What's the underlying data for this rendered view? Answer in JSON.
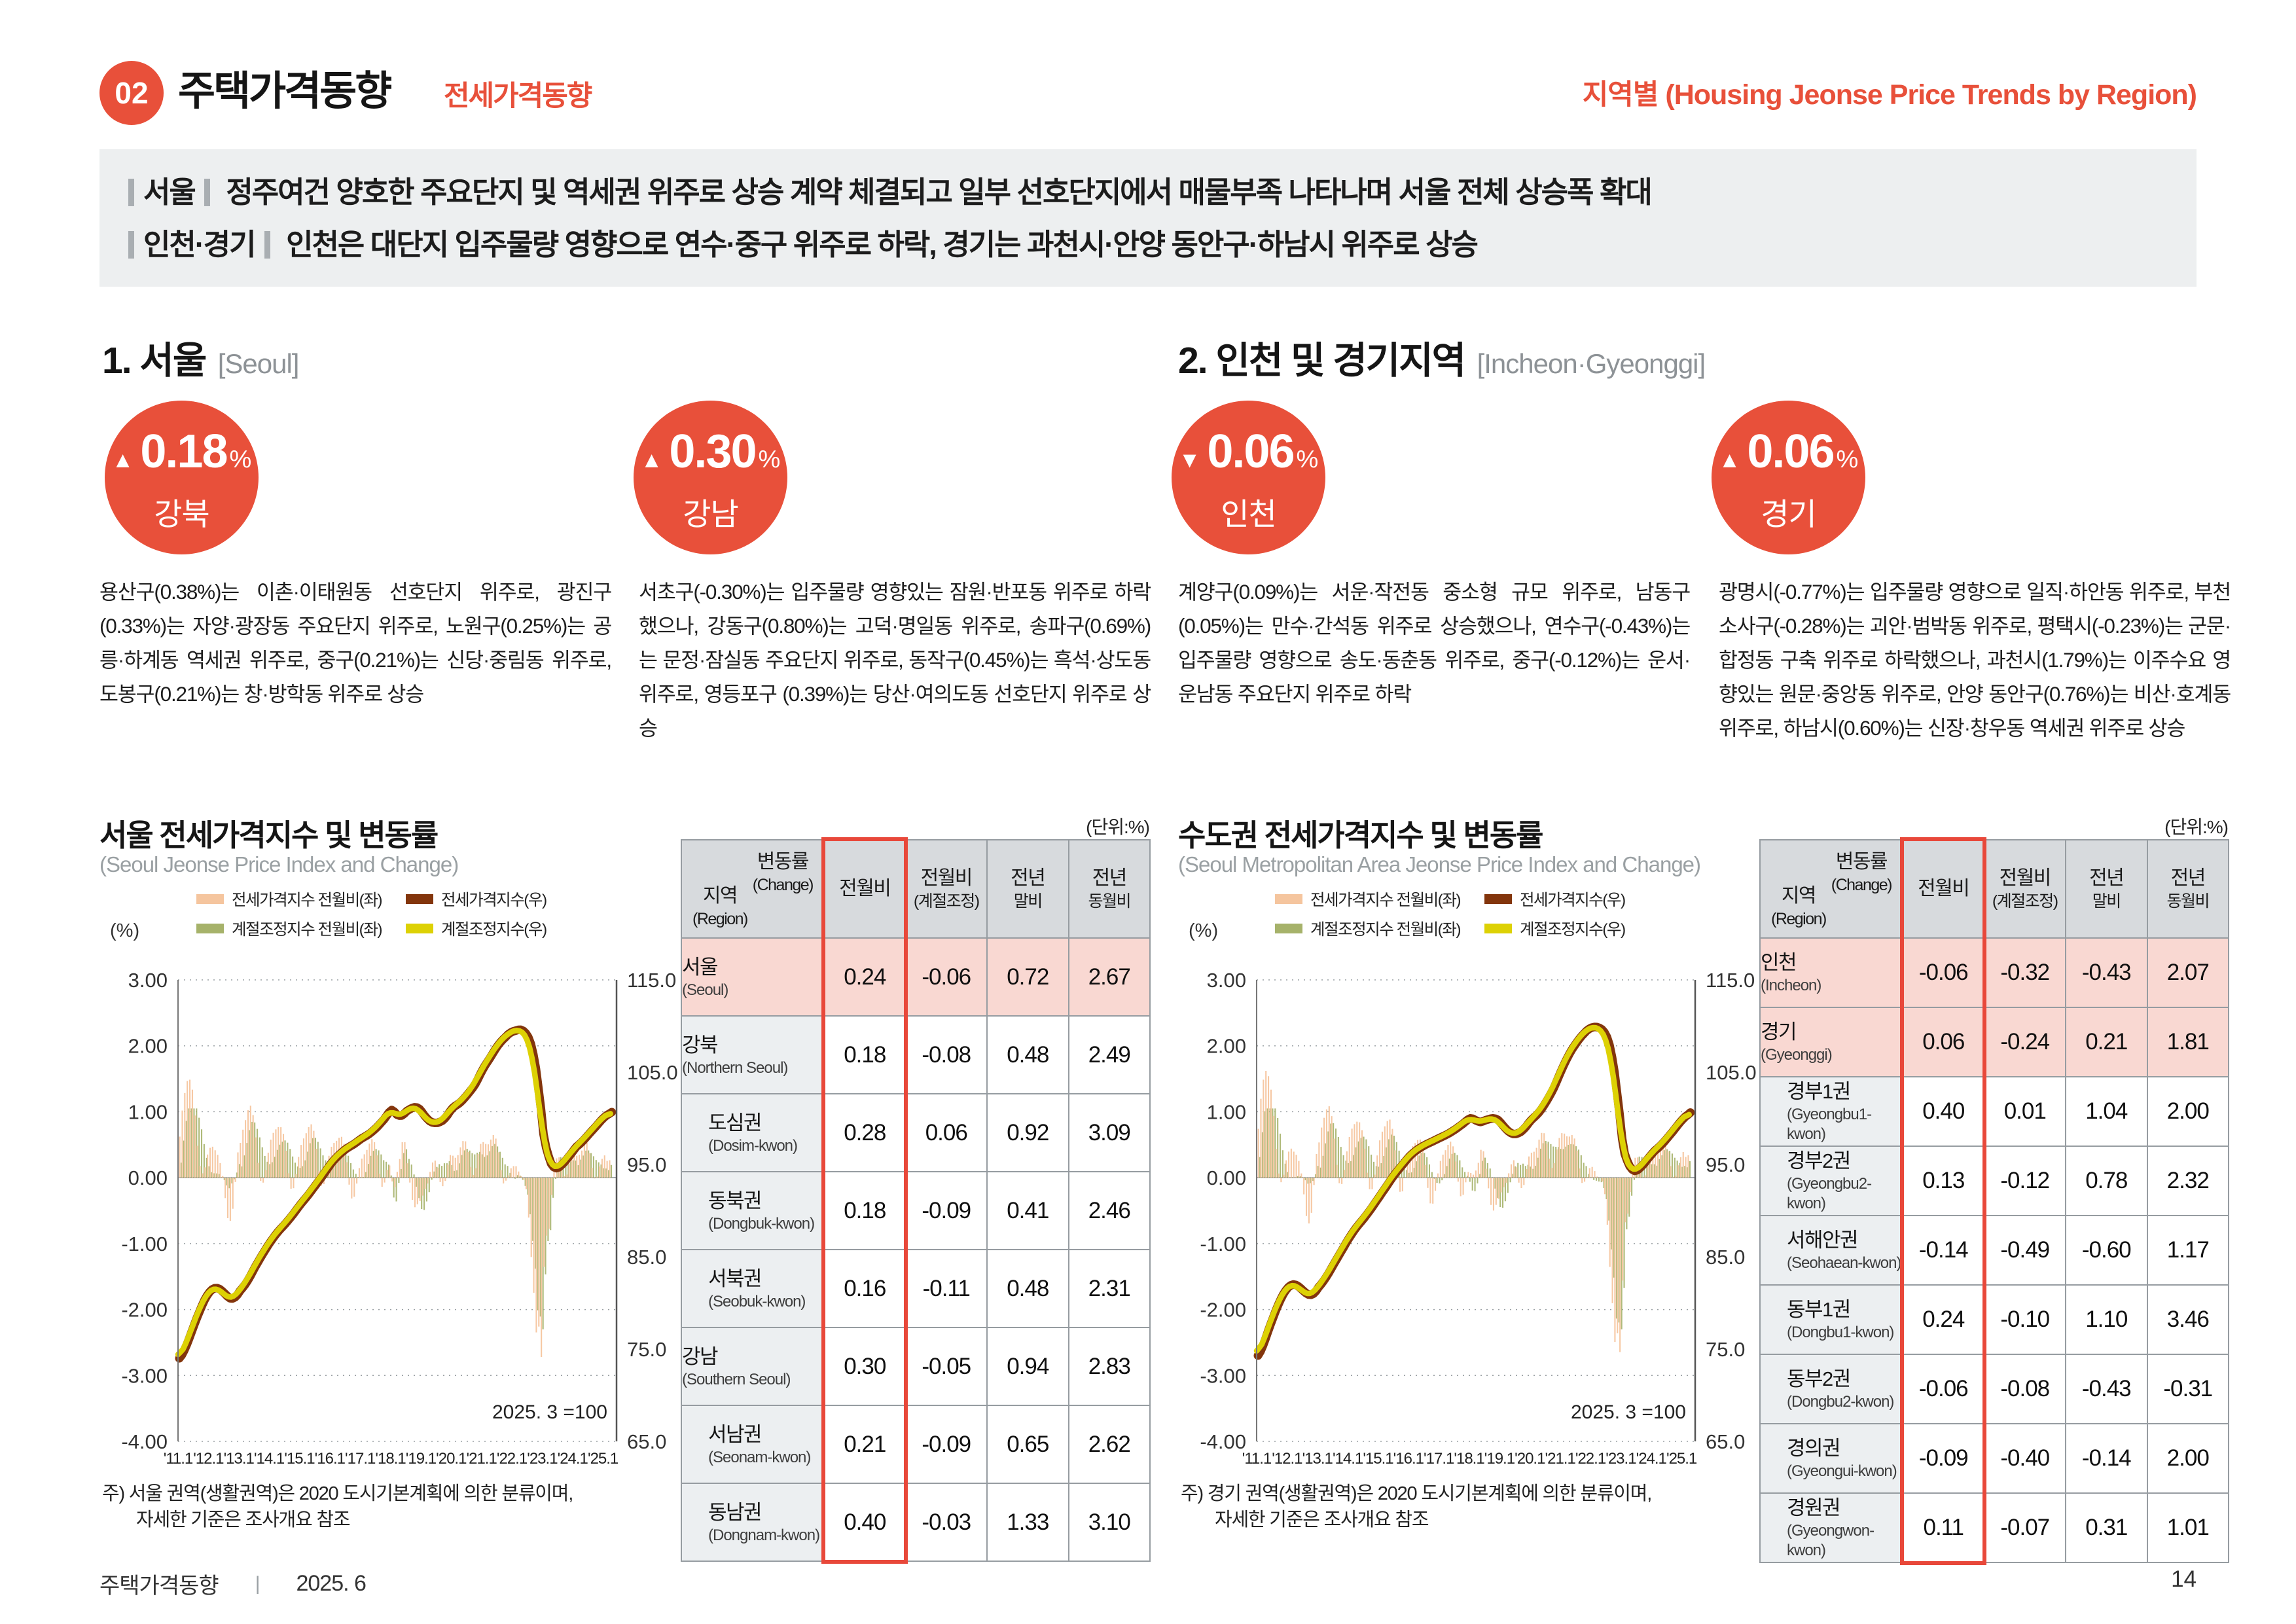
{
  "page": {
    "badge_number": "02",
    "title": "주택가격동향",
    "title_sub": "전세가격동향",
    "header_right": "지역별 (Housing Jeonse Price Trends by Region)",
    "accent_color": "#e8503a",
    "footer": {
      "doc_title": "주택가격동향",
      "divider": "|",
      "date": "2025. 6",
      "page_number": "14"
    }
  },
  "summary": {
    "items": [
      {
        "label": "서울",
        "text": "정주여건 양호한 주요단지 및 역세권 위주로 상승 계약 체결되고 일부 선호단지에서 매물부족 나타나며 서울 전체 상승폭 확대"
      },
      {
        "label": "인천·경기",
        "text": "인천은 대단지 입주물량 영향으로 연수·중구 위주로 하락, 경기는 과천시·안양 동안구·하남시 위주로 상승"
      }
    ]
  },
  "sections": [
    {
      "no_title": "1. 서울",
      "en": "[Seoul]",
      "badges": [
        {
          "arrow": "▲",
          "value": "0.18",
          "unit": "%",
          "region": "강북"
        },
        {
          "arrow": "▲",
          "value": "0.30",
          "unit": "%",
          "region": "강남"
        }
      ],
      "paragraphs": [
        "용산구(0.38%)는 이촌·이태원동 선호단지 위주로, 광진구(0.33%)는 자양·광장동 주요단지 위주로, 노원구(0.25%)는 공릉·하계동 역세권 위주로, 중구(0.21%)는 신당·중림동 위주로, 도봉구(0.21%)는 창·방학동 위주로 상승",
        "서초구(-0.30%)는 입주물량 영향있는 잠원·반포동 위주로 하락했으나, 강동구(0.80%)는 고덕·명일동 위주로, 송파구(0.69%)는 문정·잠실동 주요단지 위주로, 동작구(0.45%)는 흑석·상도동 위주로, 영등포구 (0.39%)는 당산·여의도동 선호단지 위주로 상승"
      ]
    },
    {
      "no_title": "2. 인천 및 경기지역",
      "en": "[Incheon·Gyeonggi]",
      "badges": [
        {
          "arrow": "▼",
          "value": "0.06",
          "unit": "%",
          "region": "인천"
        },
        {
          "arrow": "▲",
          "value": "0.06",
          "unit": "%",
          "region": "경기"
        }
      ],
      "paragraphs": [
        "계양구(0.09%)는 서운·작전동 중소형 규모 위주로, 남동구(0.05%)는 만수·간석동 위주로 상승했으나, 연수구(-0.43%)는 입주물량 영향으로 송도·동춘동 위주로, 중구(-0.12%)는 운서·운남동 주요단지 위주로 하락",
        "광명시(-0.77%)는 입주물량 영향으로 일직·하안동 위주로, 부천 소사구(-0.28%)는 괴안·범박동 위주로, 평택시(-0.23%)는 군문·합정동 구축 위주로 하락했으나, 과천시(1.79%)는 이주수요 영향있는 원문·중앙동 위주로, 안양 동안구(0.76%)는 비산·호계동 위주로, 하남시(0.60%)는 신장·창우동 역세권 위주로 상승"
      ]
    }
  ],
  "legend": {
    "pct_label": "(%)",
    "items": [
      {
        "color": "#f5c59e",
        "label": "전세가격지수 전월비(좌)"
      },
      {
        "color": "#83350c",
        "label": "전세가격지수(우)"
      },
      {
        "color": "#a6b26a",
        "label": "계절조정지수 전월비(좌)"
      },
      {
        "color": "#ddd104",
        "label": "계절조정지수(우)"
      }
    ]
  },
  "figures": [
    {
      "title": "서울 전세가격지수 및 변동률",
      "subtitle": "(Seoul Jeonse Price Index and Change)",
      "unit_label": "(단위:%)",
      "note1": "주) 서울 권역(생활권역)은 2020 도시기본계획에 의한 분류이며,",
      "note2": "자세한 기준은 조사개요 참조",
      "table": {
        "corner": {
          "top": "변동률",
          "top_en": "(Change)",
          "bottom": "지역",
          "bottom_en": "(Region)"
        },
        "columns": [
          {
            "l1": "전월비",
            "l2": ""
          },
          {
            "l1": "전월비",
            "l2": "(계절조정)"
          },
          {
            "l1": "전년",
            "l2": "말비"
          },
          {
            "l1": "전년",
            "l2": "동월비"
          }
        ],
        "rows": [
          {
            "name": "서울",
            "en": "(Seoul)",
            "highlight": true,
            "indent": false,
            "values": [
              "0.24",
              "-0.06",
              "0.72",
              "2.67"
            ]
          },
          {
            "name": "강북",
            "en": "(Northern Seoul)",
            "highlight": false,
            "indent": false,
            "values": [
              "0.18",
              "-0.08",
              "0.48",
              "2.49"
            ]
          },
          {
            "name": "도심권",
            "en": "(Dosim-kwon)",
            "highlight": false,
            "indent": true,
            "values": [
              "0.28",
              "0.06",
              "0.92",
              "3.09"
            ]
          },
          {
            "name": "동북권",
            "en": "(Dongbuk-kwon)",
            "highlight": false,
            "indent": true,
            "values": [
              "0.18",
              "-0.09",
              "0.41",
              "2.46"
            ]
          },
          {
            "name": "서북권",
            "en": "(Seobuk-kwon)",
            "highlight": false,
            "indent": true,
            "values": [
              "0.16",
              "-0.11",
              "0.48",
              "2.31"
            ]
          },
          {
            "name": "강남",
            "en": "(Southern Seoul)",
            "highlight": false,
            "indent": false,
            "values": [
              "0.30",
              "-0.05",
              "0.94",
              "2.83"
            ]
          },
          {
            "name": "서남권",
            "en": "(Seonam-kwon)",
            "highlight": false,
            "indent": true,
            "values": [
              "0.21",
              "-0.09",
              "0.65",
              "2.62"
            ]
          },
          {
            "name": "동남권",
            "en": "(Dongnam-kwon)",
            "highlight": false,
            "indent": true,
            "values": [
              "0.40",
              "-0.03",
              "1.33",
              "3.10"
            ]
          }
        ]
      }
    },
    {
      "title": "수도권 전세가격지수 및 변동률",
      "subtitle": "(Seoul Metropolitan Area Jeonse Price Index and Change)",
      "unit_label": "(단위:%)",
      "note1": "주) 경기 권역(생활권역)은 2020 도시기본계획에 의한 분류이며,",
      "note2": "자세한 기준은 조사개요 참조",
      "table": {
        "corner": {
          "top": "변동률",
          "top_en": "(Change)",
          "bottom": "지역",
          "bottom_en": "(Region)"
        },
        "columns": [
          {
            "l1": "전월비",
            "l2": ""
          },
          {
            "l1": "전월비",
            "l2": "(계절조정)"
          },
          {
            "l1": "전년",
            "l2": "말비"
          },
          {
            "l1": "전년",
            "l2": "동월비"
          }
        ],
        "rows": [
          {
            "name": "인천",
            "en": "(Incheon)",
            "highlight": true,
            "indent": false,
            "values": [
              "-0.06",
              "-0.32",
              "-0.43",
              "2.07"
            ]
          },
          {
            "name": "경기",
            "en": "(Gyeonggi)",
            "highlight": true,
            "indent": false,
            "values": [
              "0.06",
              "-0.24",
              "0.21",
              "1.81"
            ]
          },
          {
            "name": "경부1권",
            "en": "(Gyeongbu1-kwon)",
            "highlight": false,
            "indent": true,
            "values": [
              "0.40",
              "0.01",
              "1.04",
              "2.00"
            ]
          },
          {
            "name": "경부2권",
            "en": "(Gyeongbu2-kwon)",
            "highlight": false,
            "indent": true,
            "values": [
              "0.13",
              "-0.12",
              "0.78",
              "2.32"
            ]
          },
          {
            "name": "서해안권",
            "en": "(Seohaean-kwon)",
            "highlight": false,
            "indent": true,
            "values": [
              "-0.14",
              "-0.49",
              "-0.60",
              "1.17"
            ]
          },
          {
            "name": "동부1권",
            "en": "(Dongbu1-kwon)",
            "highlight": false,
            "indent": true,
            "values": [
              "0.24",
              "-0.10",
              "1.10",
              "3.46"
            ]
          },
          {
            "name": "동부2권",
            "en": "(Dongbu2-kwon)",
            "highlight": false,
            "indent": true,
            "values": [
              "-0.06",
              "-0.08",
              "-0.43",
              "-0.31"
            ]
          },
          {
            "name": "경의권",
            "en": "(Gyeongui-kwon)",
            "highlight": false,
            "indent": true,
            "values": [
              "-0.09",
              "-0.40",
              "-0.14",
              "2.00"
            ]
          },
          {
            "name": "경원권",
            "en": "(Gyeongwon-kwon)",
            "highlight": false,
            "indent": true,
            "values": [
              "0.11",
              "-0.07",
              "0.31",
              "1.01"
            ]
          }
        ]
      }
    }
  ],
  "chart_axes": {
    "left_label": "(%)",
    "left_ticks": [
      "3.00",
      "2.00",
      "1.00",
      "0.00",
      "-1.00",
      "-2.00",
      "-3.00",
      "-4.00"
    ],
    "right_ticks": [
      "115.0",
      "105.0",
      "95.0",
      "85.0",
      "75.0",
      "65.0"
    ],
    "x_ticks": [
      "'11.1",
      "'12.1",
      "'13.1",
      "'14.1",
      "'15.1",
      "'16.1",
      "'17.1",
      "'18.1",
      "'19.1",
      "'20.1",
      "'21.1",
      "'22.1",
      "'23.1",
      "'24.1",
      "'25.1"
    ],
    "left_range": [
      -4,
      3
    ],
    "right_range": [
      65,
      115
    ],
    "x_range": [
      2011.0,
      2025.45
    ],
    "grid": "dotted-horizontal"
  },
  "chart_data": [
    {
      "type": "bar",
      "title": "서울 전세가격지수 및 변동률",
      "annotation": "2025. 3 =100",
      "series_meta": [
        {
          "name": "전세가격지수 전월비(좌)",
          "type": "bar",
          "axis": "left",
          "color": "#f5c59e"
        },
        {
          "name": "계절조정지수 전월비(좌)",
          "type": "bar",
          "axis": "left",
          "color": "#a6b26a"
        },
        {
          "name": "전세가격지수(우)",
          "type": "line",
          "axis": "right",
          "color": "#83350c"
        },
        {
          "name": "계절조정지수(우)",
          "type": "line",
          "axis": "right",
          "color": "#ddd104"
        }
      ],
      "wobble": {
        "amp_start": 0.62,
        "amp_end": 0.22
      },
      "index_anchors": [
        [
          2011.0,
          74.0
        ],
        [
          2011.17,
          74.9
        ],
        [
          2011.33,
          76.2
        ],
        [
          2011.5,
          77.7
        ],
        [
          2011.67,
          79.1
        ],
        [
          2011.83,
          80.3
        ],
        [
          2012.0,
          81.2
        ],
        [
          2012.17,
          81.6
        ],
        [
          2012.33,
          81.5
        ],
        [
          2012.5,
          81.0
        ],
        [
          2012.67,
          80.5
        ],
        [
          2012.83,
          80.6
        ],
        [
          2013.0,
          81.3
        ],
        [
          2013.25,
          82.4
        ],
        [
          2013.5,
          83.9
        ],
        [
          2013.75,
          85.3
        ],
        [
          2014.0,
          86.6
        ],
        [
          2014.25,
          87.7
        ],
        [
          2014.5,
          88.6
        ],
        [
          2014.75,
          89.6
        ],
        [
          2015.0,
          90.7
        ],
        [
          2015.25,
          91.7
        ],
        [
          2015.5,
          92.8
        ],
        [
          2015.75,
          93.9
        ],
        [
          2016.0,
          95.1
        ],
        [
          2016.25,
          96.0
        ],
        [
          2016.5,
          96.7
        ],
        [
          2016.75,
          97.2
        ],
        [
          2017.0,
          97.8
        ],
        [
          2017.25,
          98.3
        ],
        [
          2017.5,
          99.0
        ],
        [
          2017.75,
          99.9
        ],
        [
          2018.0,
          100.9
        ],
        [
          2018.17,
          100.4
        ],
        [
          2018.33,
          100.3
        ],
        [
          2018.5,
          100.8
        ],
        [
          2018.75,
          101.2
        ],
        [
          2018.92,
          101.0
        ],
        [
          2019.08,
          100.3
        ],
        [
          2019.25,
          99.7
        ],
        [
          2019.42,
          99.5
        ],
        [
          2019.58,
          99.6
        ],
        [
          2019.75,
          100.0
        ],
        [
          2020.0,
          101.1
        ],
        [
          2020.25,
          101.7
        ],
        [
          2020.5,
          102.6
        ],
        [
          2020.75,
          103.7
        ],
        [
          2021.0,
          105.3
        ],
        [
          2021.25,
          106.6
        ],
        [
          2021.5,
          107.9
        ],
        [
          2021.75,
          108.8
        ],
        [
          2021.92,
          109.3
        ],
        [
          2022.08,
          109.5
        ],
        [
          2022.25,
          109.6
        ],
        [
          2022.42,
          109.2
        ],
        [
          2022.58,
          108.1
        ],
        [
          2022.75,
          105.4
        ],
        [
          2022.92,
          101.0
        ],
        [
          2023.0,
          98.3
        ],
        [
          2023.08,
          96.9
        ],
        [
          2023.25,
          95.1
        ],
        [
          2023.42,
          94.6
        ],
        [
          2023.58,
          94.9
        ],
        [
          2023.75,
          95.5
        ],
        [
          2023.92,
          96.2
        ],
        [
          2024.08,
          96.9
        ],
        [
          2024.25,
          97.4
        ],
        [
          2024.5,
          98.3
        ],
        [
          2024.75,
          99.2
        ],
        [
          2025.0,
          100.1
        ],
        [
          2025.17,
          100.5
        ],
        [
          2025.33,
          100.8
        ]
      ]
    },
    {
      "type": "bar",
      "title": "수도권 전세가격지수 및 변동률",
      "annotation": "2025. 3 =100",
      "series_meta": [
        {
          "name": "전세가격지수 전월비(좌)",
          "type": "bar",
          "axis": "left",
          "color": "#f5c59e"
        },
        {
          "name": "계절조정지수 전월비(좌)",
          "type": "bar",
          "axis": "left",
          "color": "#a6b26a"
        },
        {
          "name": "전세가격지수(우)",
          "type": "line",
          "axis": "right",
          "color": "#83350c"
        },
        {
          "name": "계절조정지수(우)",
          "type": "line",
          "axis": "right",
          "color": "#ddd104"
        }
      ],
      "wobble": {
        "amp_start": 0.68,
        "amp_end": 0.24
      },
      "index_anchors": [
        [
          2011.0,
          74.3
        ],
        [
          2011.17,
          75.4
        ],
        [
          2011.33,
          76.9
        ],
        [
          2011.5,
          78.4
        ],
        [
          2011.67,
          79.8
        ],
        [
          2011.83,
          80.9
        ],
        [
          2012.0,
          81.7
        ],
        [
          2012.17,
          82.0
        ],
        [
          2012.33,
          81.8
        ],
        [
          2012.5,
          81.3
        ],
        [
          2012.67,
          80.9
        ],
        [
          2012.83,
          81.0
        ],
        [
          2013.0,
          81.7
        ],
        [
          2013.25,
          82.8
        ],
        [
          2013.5,
          84.2
        ],
        [
          2013.75,
          85.6
        ],
        [
          2014.0,
          87.0
        ],
        [
          2014.25,
          88.2
        ],
        [
          2014.5,
          89.2
        ],
        [
          2014.75,
          90.3
        ],
        [
          2015.0,
          91.5
        ],
        [
          2015.25,
          92.7
        ],
        [
          2015.5,
          93.9
        ],
        [
          2015.75,
          94.9
        ],
        [
          2016.0,
          95.9
        ],
        [
          2016.25,
          96.6
        ],
        [
          2016.5,
          97.1
        ],
        [
          2016.75,
          97.5
        ],
        [
          2017.0,
          97.9
        ],
        [
          2017.25,
          98.3
        ],
        [
          2017.5,
          98.8
        ],
        [
          2017.75,
          99.4
        ],
        [
          2018.0,
          100.0
        ],
        [
          2018.17,
          99.8
        ],
        [
          2018.33,
          99.6
        ],
        [
          2018.5,
          99.8
        ],
        [
          2018.75,
          100.0
        ],
        [
          2018.92,
          99.8
        ],
        [
          2019.08,
          99.2
        ],
        [
          2019.25,
          98.6
        ],
        [
          2019.42,
          98.3
        ],
        [
          2019.58,
          98.4
        ],
        [
          2019.75,
          98.8
        ],
        [
          2020.0,
          99.8
        ],
        [
          2020.25,
          100.6
        ],
        [
          2020.5,
          101.8
        ],
        [
          2020.75,
          103.3
        ],
        [
          2021.0,
          105.2
        ],
        [
          2021.25,
          106.9
        ],
        [
          2021.5,
          108.2
        ],
        [
          2021.75,
          109.2
        ],
        [
          2021.92,
          109.7
        ],
        [
          2022.08,
          109.9
        ],
        [
          2022.25,
          109.8
        ],
        [
          2022.42,
          109.3
        ],
        [
          2022.58,
          108.0
        ],
        [
          2022.75,
          105.0
        ],
        [
          2022.92,
          100.4
        ],
        [
          2023.0,
          97.8
        ],
        [
          2023.08,
          96.2
        ],
        [
          2023.25,
          94.8
        ],
        [
          2023.42,
          94.3
        ],
        [
          2023.58,
          94.6
        ],
        [
          2023.75,
          95.2
        ],
        [
          2023.92,
          95.9
        ],
        [
          2024.08,
          96.5
        ],
        [
          2024.25,
          97.0
        ],
        [
          2024.5,
          97.9
        ],
        [
          2024.75,
          98.9
        ],
        [
          2025.0,
          99.9
        ],
        [
          2025.17,
          100.4
        ],
        [
          2025.33,
          100.8
        ]
      ]
    }
  ]
}
